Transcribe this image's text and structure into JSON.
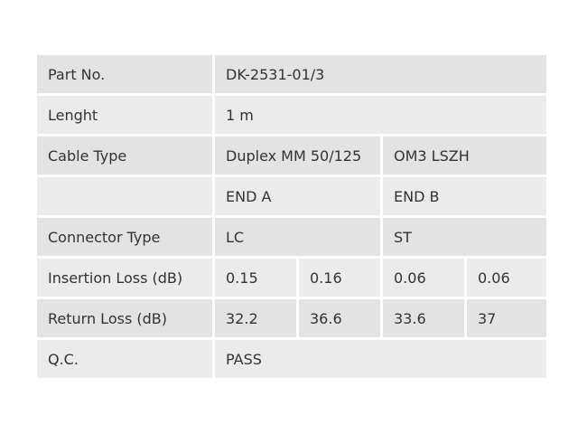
{
  "table": {
    "rows": [
      [
        "Part No.",
        "DK-2531-01/3"
      ],
      [
        "Lenght",
        "1 m"
      ],
      [
        "Cable Type",
        "Duplex MM 50/125",
        "OM3 LSZH"
      ],
      [
        null,
        "END A",
        "END B"
      ],
      [
        "Connector Type",
        "LC",
        "ST"
      ],
      [
        "Insertion Loss (dB)",
        "0.15",
        "0.16",
        "0.06",
        "0.06"
      ],
      [
        "Return Loss (dB)",
        "32.2",
        "36.6",
        "33.6",
        "37"
      ],
      [
        "Q.C.",
        "PASS"
      ]
    ]
  }
}
